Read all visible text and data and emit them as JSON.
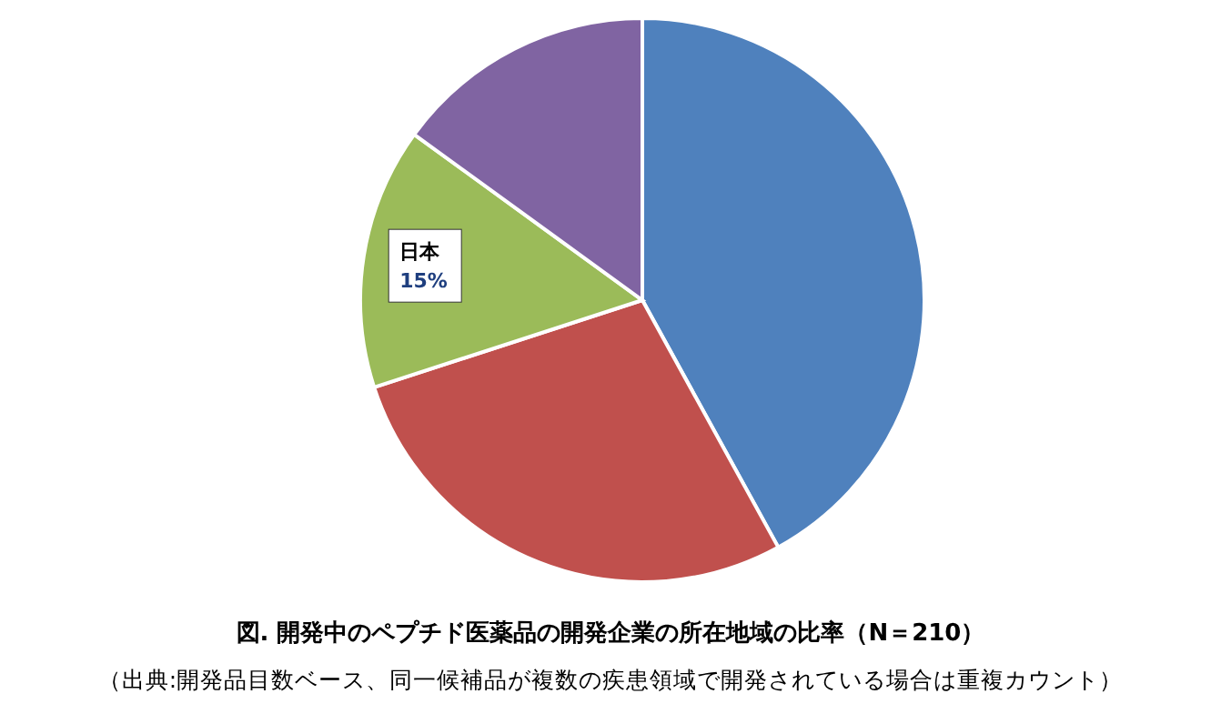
{
  "chart_data": {
    "type": "pie",
    "title": "図.  開発中のペプチド医薬品の開発企業の所在地域の比率（N＝210）",
    "categories": [
      null,
      null,
      "日本",
      null
    ],
    "values": [
      42,
      28,
      15,
      15
    ],
    "colors": [
      "#4f81bd",
      "#c0504d",
      "#9bbb59",
      "#8064a2"
    ],
    "value_labels": [
      null,
      null,
      "15%",
      null
    ],
    "annotations": [
      "（出典:開発品目数ベース、同一候補品が複数の疾患領域で開発されている場合は重複カウント）"
    ]
  }
}
